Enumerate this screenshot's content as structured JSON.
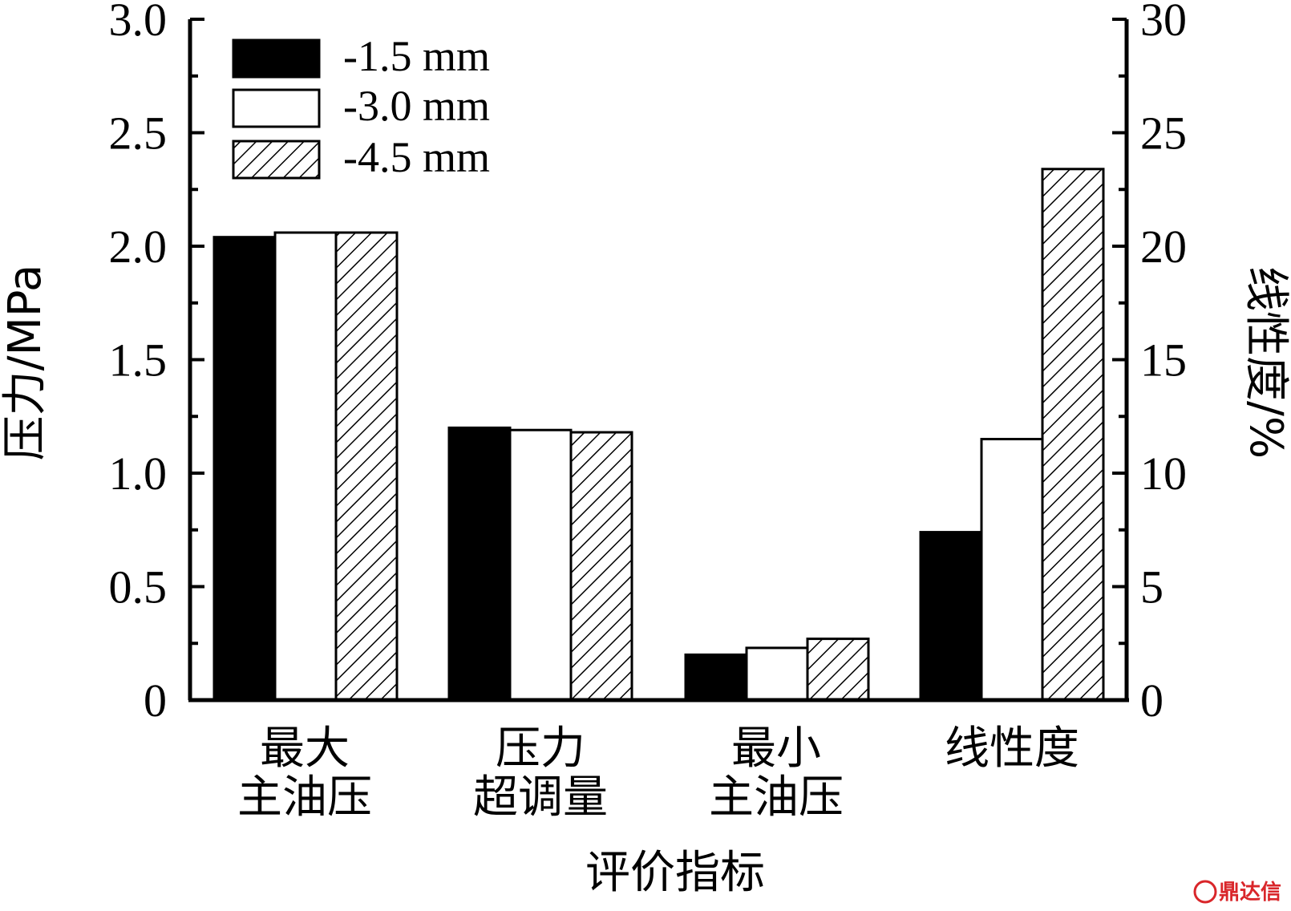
{
  "chart_data": {
    "type": "bar",
    "xlabel": "评价指标",
    "ylabel_left": "压力/MPa",
    "ylabel_right": "线性度/%",
    "ylim_left": [
      0,
      3.0
    ],
    "ylim_right": [
      0,
      30
    ],
    "yticks_left": [
      "0",
      "0.5",
      "1.0",
      "1.5",
      "2.0",
      "2.5",
      "3.0"
    ],
    "yticks_right": [
      "0",
      "5",
      "10",
      "15",
      "20",
      "25",
      "30"
    ],
    "categories": [
      {
        "line1": "最大",
        "line2": "主油压",
        "axis": "left"
      },
      {
        "line1": "压力",
        "line2": "超调量",
        "axis": "left"
      },
      {
        "line1": "最小",
        "line2": "主油压",
        "axis": "left"
      },
      {
        "line1": "线性度",
        "line2": "",
        "axis": "right"
      }
    ],
    "series": [
      {
        "name": "-1.5 mm",
        "fill": "solid",
        "values": [
          2.04,
          1.2,
          0.2,
          7.4
        ]
      },
      {
        "name": "-3.0 mm",
        "fill": "white",
        "values": [
          2.06,
          1.19,
          0.23,
          11.5
        ]
      },
      {
        "name": "-4.5 mm",
        "fill": "hatch",
        "values": [
          2.06,
          1.18,
          0.27,
          23.4
        ]
      }
    ],
    "legend_position": "top-left"
  },
  "watermark": {
    "text": "鼎达信",
    "color": "#d9262a"
  }
}
